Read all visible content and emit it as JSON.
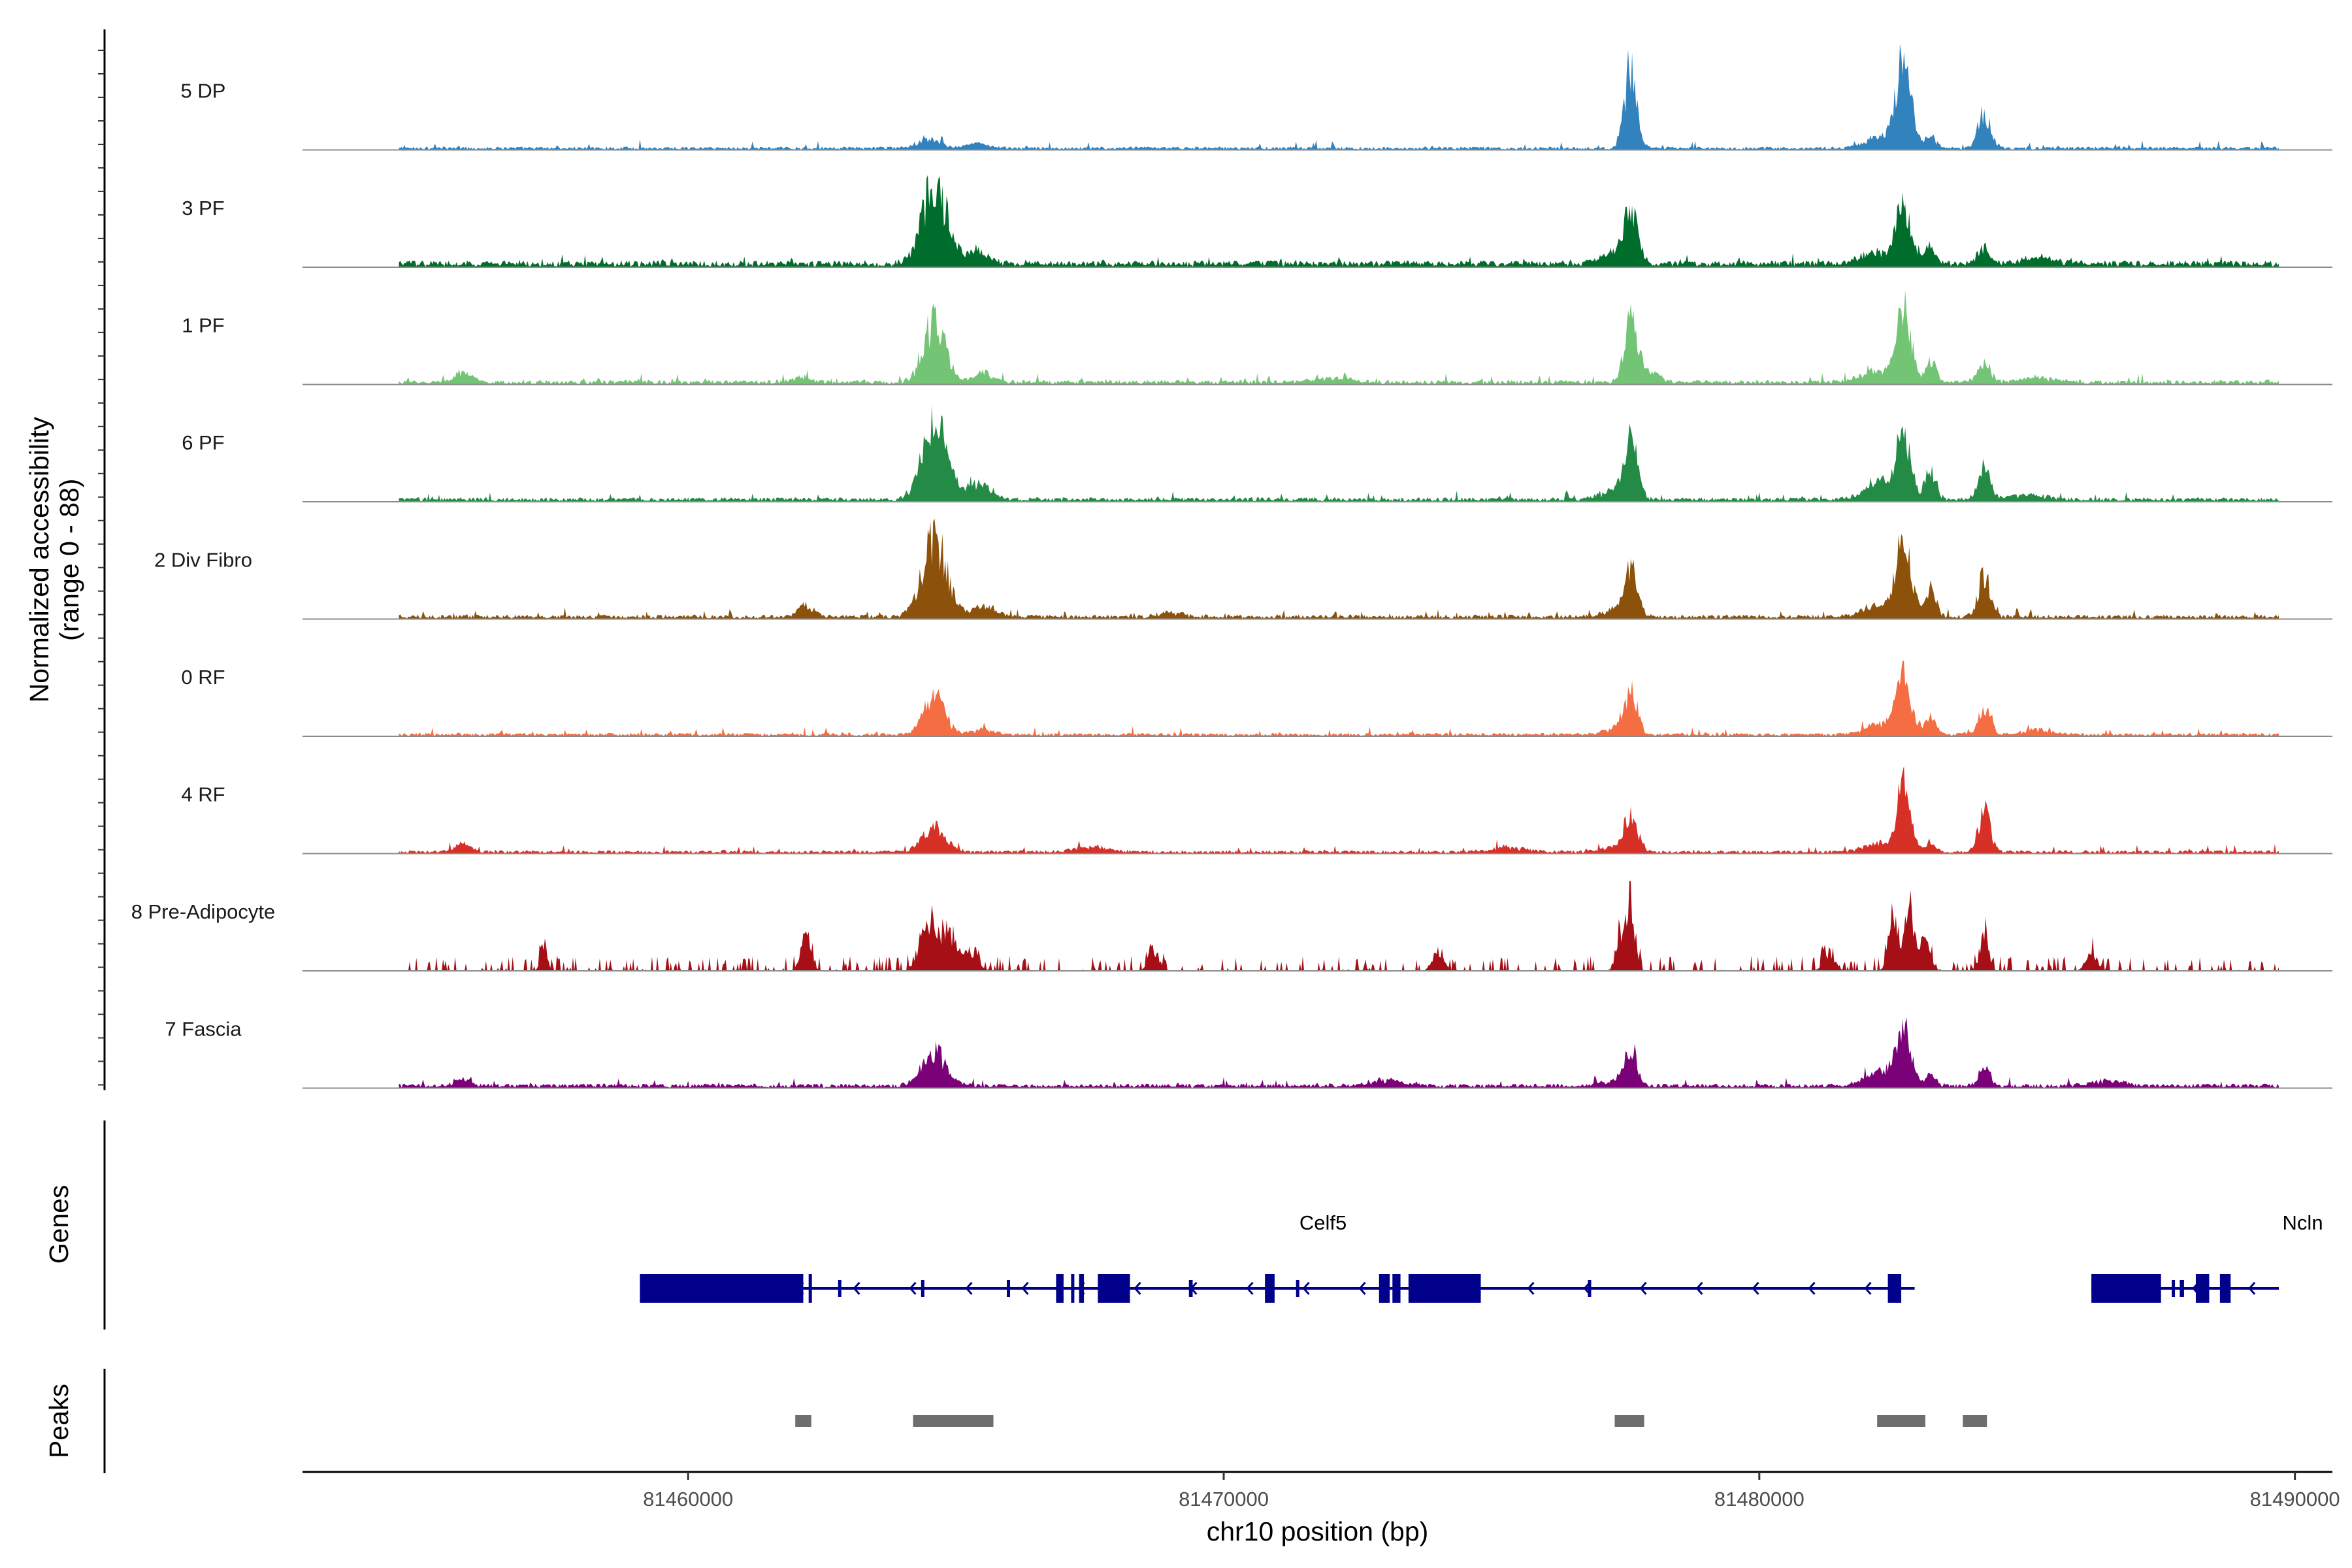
{
  "chart_data": {
    "type": "area",
    "title": "",
    "ylabel": "Normalized accessibility\n(range 0 - 88)",
    "y_range": [
      0,
      88
    ],
    "xlabel": "chr10 position (bp)",
    "xlim": [
      81452800,
      81490700
    ],
    "x_ticks": [
      81460000,
      81470000,
      81480000,
      81490000
    ],
    "x_tick_labels": [
      "81460000",
      "81470000",
      "81480000",
      "81490000"
    ],
    "data_start": 81454600,
    "data_end": 81489700,
    "tracks": [
      {
        "name": "5 DP",
        "color": "#3182bd",
        "base": 1.5,
        "peaks": [
          [
            81464500,
            10,
            200
          ],
          [
            81465400,
            5,
            180
          ],
          [
            81477600,
            88,
            110
          ],
          [
            81482700,
            87,
            140
          ],
          [
            81482300,
            12,
            300
          ],
          [
            81483200,
            12,
            100
          ],
          [
            81484200,
            40,
            110
          ]
        ]
      },
      {
        "name": "3 PF",
        "color": "#006d2c",
        "base": 3,
        "peaks": [
          [
            81464600,
            88,
            230
          ],
          [
            81465400,
            12,
            200
          ],
          [
            81477600,
            52,
            130
          ],
          [
            81477300,
            12,
            250
          ],
          [
            81482700,
            67,
            140
          ],
          [
            81482200,
            13,
            300
          ],
          [
            81483200,
            18,
            110
          ],
          [
            81484200,
            20,
            110
          ],
          [
            81485200,
            6,
            300
          ]
        ]
      },
      {
        "name": "1 PF",
        "color": "#74c476",
        "base": 2,
        "peaks": [
          [
            81464600,
            64,
            200
          ],
          [
            81465500,
            10,
            200
          ],
          [
            81477600,
            70,
            120
          ],
          [
            81477900,
            12,
            200
          ],
          [
            81482700,
            82,
            130
          ],
          [
            81482200,
            12,
            300
          ],
          [
            81483200,
            22,
            100
          ],
          [
            81484200,
            23,
            110
          ],
          [
            81485200,
            5,
            300
          ],
          [
            81455800,
            11,
            150
          ],
          [
            81462100,
            6,
            150
          ],
          [
            81472000,
            5,
            300
          ]
        ]
      },
      {
        "name": "6 PF",
        "color": "#238b45",
        "base": 2,
        "peaks": [
          [
            81464600,
            85,
            220
          ],
          [
            81465400,
            18,
            220
          ],
          [
            81477600,
            60,
            120
          ],
          [
            81477300,
            10,
            250
          ],
          [
            81482700,
            66,
            130
          ],
          [
            81482300,
            18,
            300
          ],
          [
            81483200,
            32,
            100
          ],
          [
            81484200,
            35,
            110
          ],
          [
            81485000,
            5,
            300
          ]
        ]
      },
      {
        "name": "2 Div Fibro",
        "color": "#8c510a",
        "base": 2,
        "peaks": [
          [
            81464600,
            83,
            230
          ],
          [
            81465500,
            13,
            220
          ],
          [
            81477600,
            47,
            120
          ],
          [
            81477300,
            7,
            250
          ],
          [
            81482700,
            77,
            150
          ],
          [
            81482200,
            11,
            300
          ],
          [
            81483200,
            27,
            100
          ],
          [
            81484200,
            45,
            110
          ],
          [
            81462200,
            11,
            150
          ],
          [
            81469000,
            5,
            200
          ]
        ]
      },
      {
        "name": "0 RF",
        "color": "#f46d43",
        "base": 1.5,
        "peaks": [
          [
            81464600,
            40,
            200
          ],
          [
            81465500,
            6,
            200
          ],
          [
            81477600,
            44,
            120
          ],
          [
            81477300,
            6,
            250
          ],
          [
            81482700,
            58,
            130
          ],
          [
            81482300,
            12,
            300
          ],
          [
            81483200,
            18,
            100
          ],
          [
            81484200,
            30,
            110
          ],
          [
            81485200,
            5,
            250
          ]
        ]
      },
      {
        "name": "4 RF",
        "color": "#d73027",
        "base": 1.5,
        "peaks": [
          [
            81464600,
            26,
            220
          ],
          [
            81477600,
            38,
            120
          ],
          [
            81477300,
            5,
            250
          ],
          [
            81482700,
            68,
            120
          ],
          [
            81482300,
            10,
            300
          ],
          [
            81483200,
            10,
            100
          ],
          [
            81484200,
            44,
            110
          ],
          [
            81455800,
            9,
            150
          ],
          [
            81467500,
            5,
            300
          ],
          [
            81475300,
            5,
            300
          ]
        ]
      },
      {
        "name": "8 Pre-Adipocyte",
        "color": "#a50f15",
        "base": 0,
        "sparse": true,
        "peaks": [
          [
            81464500,
            54,
            150
          ],
          [
            81464900,
            40,
            150
          ],
          [
            81465300,
            20,
            120
          ],
          [
            81462200,
            37,
            90
          ],
          [
            81477600,
            76,
            80
          ],
          [
            81477400,
            38,
            80
          ],
          [
            81482500,
            58,
            90
          ],
          [
            81482800,
            72,
            80
          ],
          [
            81483100,
            40,
            90
          ],
          [
            81484200,
            40,
            80
          ],
          [
            81457300,
            30,
            60
          ],
          [
            81468700,
            22,
            100
          ],
          [
            81474000,
            22,
            100
          ],
          [
            81481300,
            21,
            100
          ],
          [
            81486200,
            20,
            100
          ]
        ]
      },
      {
        "name": "7 Fascia",
        "color": "#7a0177",
        "base": 2,
        "peaks": [
          [
            81464600,
            36,
            220
          ],
          [
            81477600,
            40,
            110
          ],
          [
            81477300,
            6,
            250
          ],
          [
            81482700,
            56,
            130
          ],
          [
            81482300,
            16,
            300
          ],
          [
            81483200,
            10,
            110
          ],
          [
            81484200,
            22,
            100
          ],
          [
            81455800,
            8,
            150
          ],
          [
            81473000,
            6,
            300
          ],
          [
            81486500,
            5,
            300
          ]
        ]
      }
    ],
    "panel_labels": {
      "genes": "Genes",
      "peaks": "Peaks"
    },
    "genes": [
      {
        "name": "Celf5",
        "start": 81459100,
        "end": 81482900,
        "strand": "-",
        "exons": [
          [
            81459100,
            81462150,
            "tall"
          ],
          [
            81462250,
            81462310,
            "tall"
          ],
          [
            81462800,
            81462860,
            "small"
          ],
          [
            81464350,
            81464410,
            "small"
          ],
          [
            81465950,
            81466010,
            "small"
          ],
          [
            81466870,
            81467010,
            "tall"
          ],
          [
            81467150,
            81467190,
            "tall"
          ],
          [
            81467300,
            81467390,
            "tall"
          ],
          [
            81467650,
            81468250,
            "tall"
          ],
          [
            81469350,
            81469420,
            "small"
          ],
          [
            81470770,
            81470950,
            "tall"
          ],
          [
            81471350,
            81471400,
            "small"
          ],
          [
            81472900,
            81473100,
            "tall"
          ],
          [
            81473150,
            81473300,
            "tall"
          ],
          [
            81473450,
            81474800,
            "tall"
          ],
          [
            81476800,
            81476860,
            "small"
          ],
          [
            81482400,
            81482650,
            "tall"
          ]
        ]
      },
      {
        "name": "Ncln",
        "start": 81486200,
        "end": 81489700,
        "strand": "-",
        "exons": [
          [
            81486200,
            81487500,
            "tall"
          ],
          [
            81487700,
            81487750,
            "small"
          ],
          [
            81487850,
            81487930,
            "small"
          ],
          [
            81488150,
            81488400,
            "tall"
          ],
          [
            81488600,
            81488800,
            "tall"
          ]
        ]
      }
    ],
    "peak_regions": [
      [
        81462000,
        81462300
      ],
      [
        81464200,
        81465700
      ],
      [
        81477300,
        81477850
      ],
      [
        81482200,
        81483100
      ],
      [
        81483800,
        81484250
      ]
    ]
  }
}
